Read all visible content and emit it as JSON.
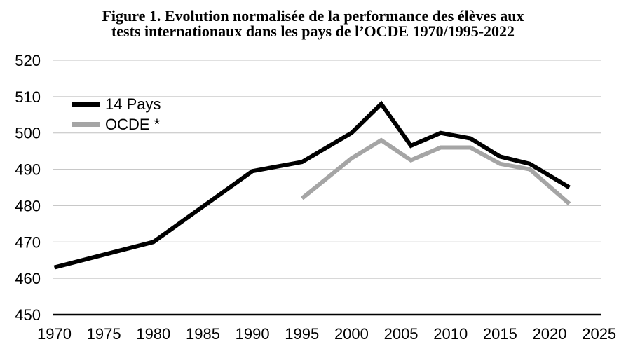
{
  "figure": {
    "title_line1": "Figure 1. Evolution normalisée de la performance des élèves aux",
    "title_line2": "tests internationaux dans les pays de l’OCDE 1970/1995-2022"
  },
  "chart_data": {
    "type": "line",
    "title": "Figure 1. Evolution normalisée de la performance des élèves aux tests internationaux dans les pays de l’OCDE 1970/1995-2022",
    "xlabel": "",
    "ylabel": "",
    "xlim": [
      1970,
      2025
    ],
    "ylim": [
      450,
      520
    ],
    "x_ticks": [
      1970,
      1975,
      1980,
      1985,
      1990,
      1995,
      2000,
      2005,
      2010,
      2015,
      2020,
      2025
    ],
    "y_ticks": [
      450,
      460,
      470,
      480,
      490,
      500,
      510,
      520
    ],
    "grid": "horizontal",
    "legend_position": "top-left-inside",
    "series": [
      {
        "name": "14 Pays",
        "color": "#000000",
        "points": [
          [
            1970,
            463
          ],
          [
            1980,
            470
          ],
          [
            1990,
            489.5
          ],
          [
            1995,
            492
          ],
          [
            2000,
            500
          ],
          [
            2003,
            508
          ],
          [
            2006,
            496.5
          ],
          [
            2009,
            500
          ],
          [
            2012,
            498.5
          ],
          [
            2015,
            493.5
          ],
          [
            2018,
            491.5
          ],
          [
            2022,
            485
          ]
        ]
      },
      {
        "name": "OCDE *",
        "color": "#a5a5a5",
        "points": [
          [
            1995,
            482
          ],
          [
            2000,
            493
          ],
          [
            2003,
            498
          ],
          [
            2006,
            492.5
          ],
          [
            2009,
            496
          ],
          [
            2012,
            496
          ],
          [
            2015,
            491.5
          ],
          [
            2018,
            490
          ],
          [
            2022,
            480.5
          ]
        ]
      }
    ]
  },
  "colors": {
    "background": "#ffffff",
    "gridline": "#c0c0c0",
    "axis": "#000000",
    "text": "#000000"
  }
}
